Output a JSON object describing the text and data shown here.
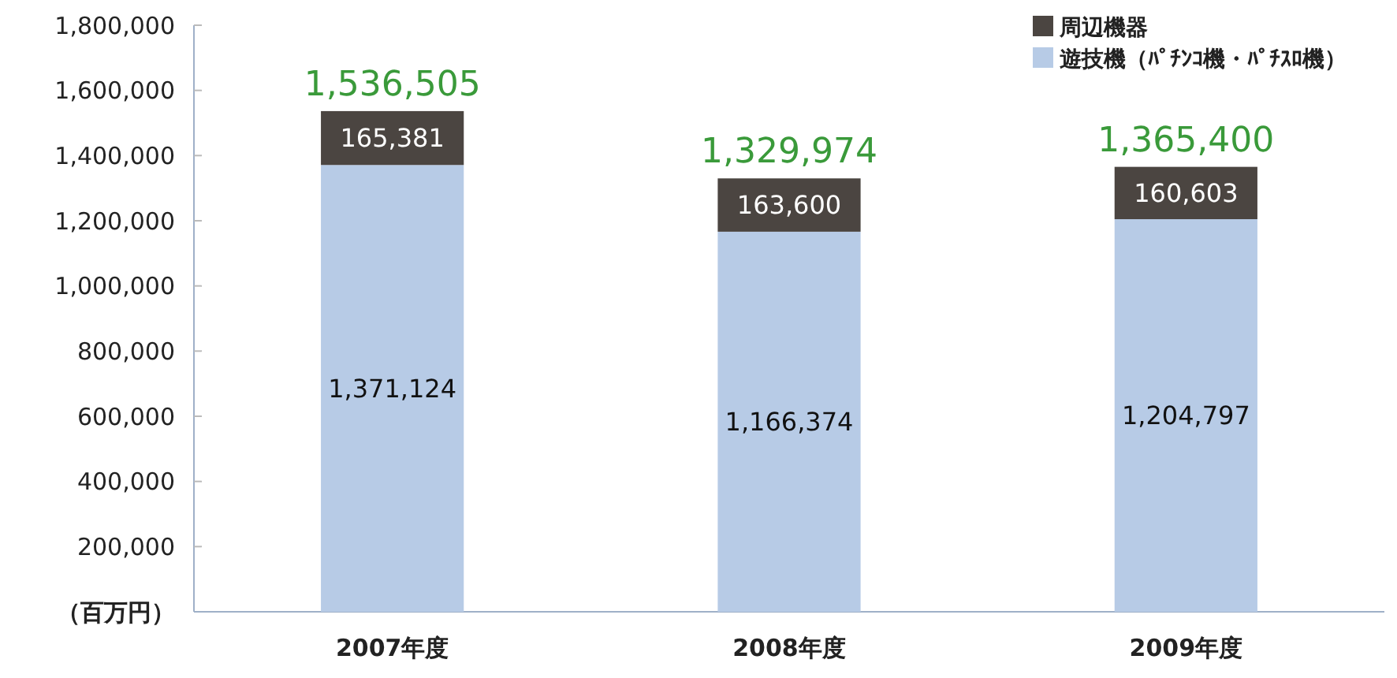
{
  "chart_data": {
    "type": "bar",
    "stacked": true,
    "ylabel": "（百万円）",
    "categories": [
      "2007年度",
      "2008年度",
      "2009年度"
    ],
    "series": [
      {
        "name": "遊技機（ﾊﾟﾁﾝｺ機・ﾊﾟﾁｽﾛ機）",
        "color": "#b7cbe6",
        "values": [
          1371124,
          1166374,
          1204797
        ],
        "value_labels": [
          "1,371,124",
          "1,166,374",
          "1,204,797"
        ]
      },
      {
        "name": "周辺機器",
        "color": "#4b4541",
        "values": [
          165381,
          163600,
          160603
        ],
        "value_labels": [
          "165,381",
          "163,600",
          "160,603"
        ]
      }
    ],
    "ylim": [
      0,
      1800000
    ],
    "yticks": [
      {
        "value": 200000,
        "label": "200,000"
      },
      {
        "value": 400000,
        "label": "400,000"
      },
      {
        "value": 600000,
        "label": "600,000"
      },
      {
        "value": 800000,
        "label": "800,000"
      },
      {
        "value": 1000000,
        "label": "1,000,000"
      },
      {
        "value": 1200000,
        "label": "1,200,000"
      },
      {
        "value": 1400000,
        "label": "1,400,000"
      },
      {
        "value": 1600000,
        "label": "1,600,000"
      },
      {
        "value": 1800000,
        "label": "1,800,000"
      }
    ],
    "totals": [
      "1,536,505",
      "1,329,974",
      "1,365,400"
    ],
    "legend": "top right",
    "grid": false
  }
}
